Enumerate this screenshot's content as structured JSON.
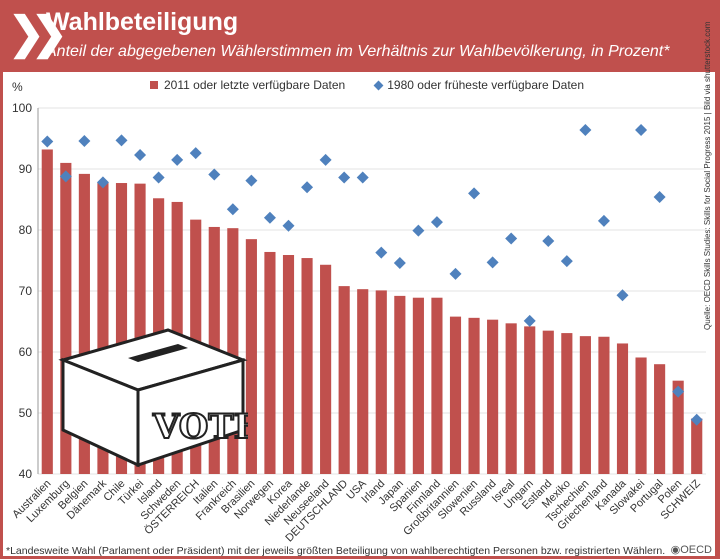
{
  "header": {
    "title": "Wahlbeteiligung",
    "subtitle": "Anteil der abgegebenen Wählerstimmen im Verhältnis zur Wahlbevölkerung, in Prozent*"
  },
  "footnote": "*Landesweite Wahl (Parlament oder Präsident) mit der jeweils größten Beteiligung von wahlberechtigten Personen bzw. registrierten Wählern.",
  "source": "Quelle: OECD Skills Studies: Skills for Social Progress 2015 | Bild via shutterstock.com",
  "logo": "OECD",
  "vote_image_text": "VOTE",
  "colors": {
    "bar": "#c0504d",
    "diamond": "#4f81bd",
    "header": "#c0504d"
  },
  "chart_data": {
    "type": "bar",
    "ylabel": "%",
    "ylim": [
      40,
      100
    ],
    "yticks": [
      40,
      50,
      60,
      70,
      80,
      90,
      100
    ],
    "grid": true,
    "legend_position": "top",
    "categories": [
      "Australien",
      "Luxemburg",
      "Belgien",
      "Dänemark",
      "Chile",
      "Türkei",
      "Island",
      "Schweden",
      "ÖSTERREICH",
      "Italien",
      "Frankreich",
      "Brasilien",
      "Norwegen",
      "Korea",
      "Niederlande",
      "Neuseeland",
      "DEUTSCHLAND",
      "USA",
      "Irland",
      "Japan",
      "Spanien",
      "Finnland",
      "Großbritannien",
      "Slowenien",
      "Russland",
      "Isreal",
      "Ungarn",
      "Estland",
      "Mexiko",
      "Tschechien",
      "Griechenland",
      "Kanada",
      "Slowakei",
      "Portugal",
      "Polen",
      "SCHWEIZ"
    ],
    "series": [
      {
        "name": "2011 oder letzte verfügbare Daten",
        "type": "bar",
        "values": [
          93.2,
          91.0,
          89.2,
          87.7,
          87.7,
          87.6,
          85.2,
          84.6,
          81.7,
          80.5,
          80.3,
          78.5,
          76.4,
          75.9,
          75.4,
          74.3,
          70.8,
          70.3,
          70.1,
          69.2,
          68.9,
          68.9,
          65.8,
          65.6,
          65.3,
          64.7,
          64.2,
          63.5,
          63.1,
          62.6,
          62.5,
          61.4,
          59.1,
          58.0,
          55.3,
          49.1
        ]
      },
      {
        "name": "1980 oder früheste verfügbare Daten",
        "type": "scatter",
        "values": [
          94.5,
          88.8,
          94.6,
          87.8,
          94.7,
          92.3,
          88.6,
          91.5,
          92.6,
          89.1,
          83.4,
          88.1,
          82.0,
          80.7,
          87.0,
          91.5,
          88.6,
          88.6,
          76.3,
          74.6,
          79.9,
          81.3,
          72.8,
          86.0,
          74.7,
          78.6,
          65.1,
          78.2,
          74.9,
          96.4,
          81.5,
          69.3,
          96.4,
          85.4,
          53.5,
          48.9
        ]
      }
    ]
  }
}
